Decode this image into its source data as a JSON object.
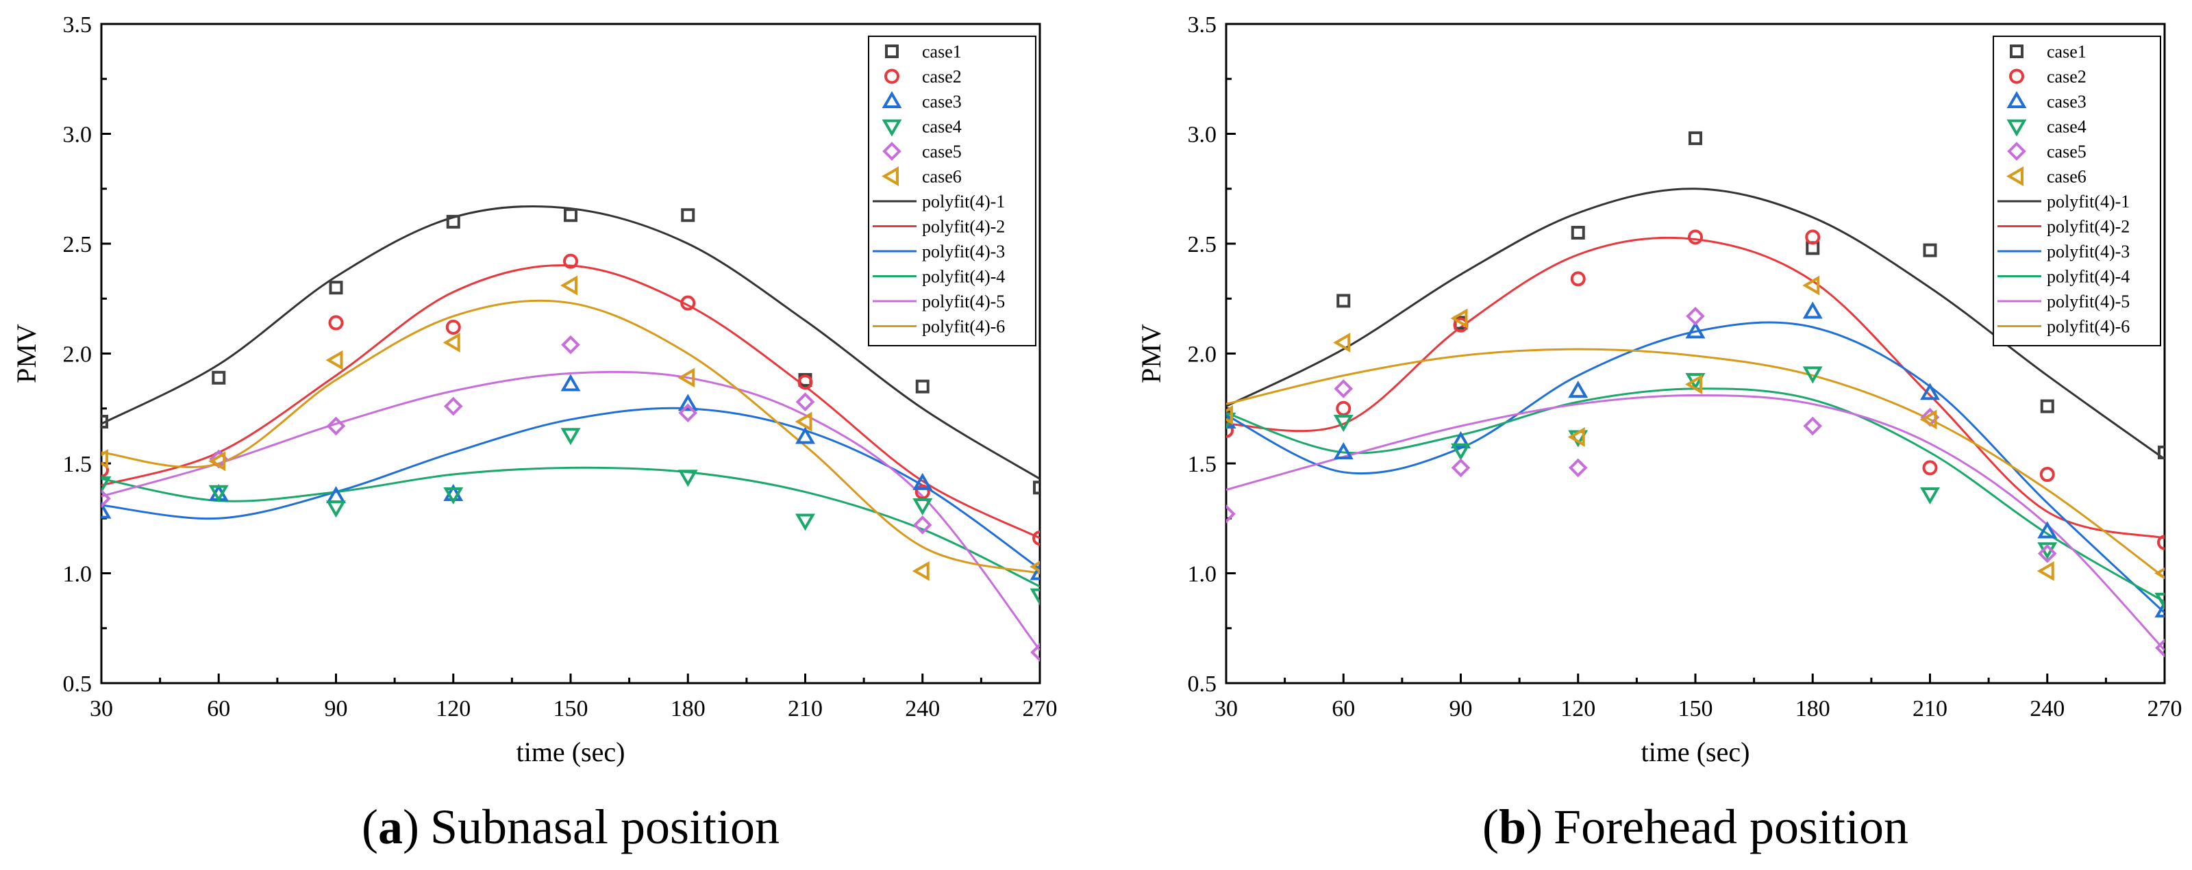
{
  "chart_data": [
    {
      "type": "scatter",
      "caption_letter": "a",
      "caption_open": "(",
      "caption_close": ")",
      "caption_text": "Subnasal position",
      "xlabel": "time (sec)",
      "ylabel": "PMV",
      "xlim": [
        30,
        270
      ],
      "ylim": [
        0.5,
        3.5
      ],
      "xticks": [
        "30",
        "60",
        "90",
        "120",
        "150",
        "180",
        "210",
        "240",
        "270"
      ],
      "yticks": [
        "0.5",
        "1.0",
        "1.5",
        "2.0",
        "2.5",
        "3.0",
        "3.5"
      ],
      "legend_position": "top-right",
      "x": [
        30,
        60,
        90,
        120,
        150,
        180,
        210,
        240,
        270
      ],
      "series": [
        {
          "name": "case1",
          "marker": "square",
          "color": "#404040",
          "values": [
            1.69,
            1.89,
            2.3,
            2.6,
            2.63,
            2.63,
            1.88,
            1.85,
            1.39
          ]
        },
        {
          "name": "case2",
          "marker": "circle",
          "color": "#e8383d",
          "values": [
            1.47,
            1.52,
            2.14,
            2.12,
            2.42,
            2.23,
            1.87,
            1.37,
            1.16
          ]
        },
        {
          "name": "case3",
          "marker": "triangle-up",
          "color": "#1f6fd6",
          "values": [
            1.28,
            1.36,
            1.35,
            1.36,
            1.86,
            1.77,
            1.62,
            1.41,
            1.0
          ]
        },
        {
          "name": "case4",
          "marker": "triangle-down",
          "color": "#1aa86b",
          "values": [
            1.41,
            1.37,
            1.3,
            1.36,
            1.63,
            1.44,
            1.24,
            1.31,
            0.9
          ]
        },
        {
          "name": "case5",
          "marker": "diamond",
          "color": "#c86edb",
          "values": [
            1.34,
            1.52,
            1.67,
            1.76,
            2.04,
            1.73,
            1.78,
            1.22,
            0.64
          ]
        },
        {
          "name": "case6",
          "marker": "triangle-left",
          "color": "#d79a1a",
          "values": [
            1.52,
            1.51,
            1.97,
            2.05,
            2.31,
            1.89,
            1.69,
            1.01,
            1.03
          ]
        }
      ],
      "fits": [
        {
          "name": "polyfit(4)-1",
          "color": "#333333",
          "values": [
            1.68,
            1.95,
            2.35,
            2.62,
            2.66,
            2.5,
            2.15,
            1.75,
            1.43
          ]
        },
        {
          "name": "polyfit(4)-2",
          "color": "#e8383d",
          "values": [
            1.4,
            1.55,
            1.9,
            2.28,
            2.4,
            2.22,
            1.85,
            1.42,
            1.16
          ]
        },
        {
          "name": "polyfit(4)-3",
          "color": "#1f6fd6",
          "values": [
            1.31,
            1.25,
            1.37,
            1.55,
            1.7,
            1.75,
            1.65,
            1.4,
            1.02
          ]
        },
        {
          "name": "polyfit(4)-4",
          "color": "#1aa86b",
          "values": [
            1.43,
            1.33,
            1.37,
            1.45,
            1.48,
            1.46,
            1.37,
            1.2,
            0.94
          ]
        },
        {
          "name": "polyfit(4)-5",
          "color": "#c86edb",
          "values": [
            1.35,
            1.5,
            1.68,
            1.83,
            1.91,
            1.89,
            1.72,
            1.35,
            0.65
          ]
        },
        {
          "name": "polyfit(4)-6",
          "color": "#d79a1a",
          "values": [
            1.55,
            1.5,
            1.88,
            2.17,
            2.23,
            2.0,
            1.58,
            1.12,
            1.0
          ]
        }
      ]
    },
    {
      "type": "scatter",
      "caption_letter": "b",
      "caption_open": "(",
      "caption_close": ")",
      "caption_text": "Forehead position",
      "xlabel": "time (sec)",
      "ylabel": "PMV",
      "xlim": [
        30,
        270
      ],
      "ylim": [
        0.5,
        3.5
      ],
      "xticks": [
        "30",
        "60",
        "90",
        "120",
        "150",
        "180",
        "210",
        "240",
        "270"
      ],
      "yticks": [
        "0.5",
        "1.0",
        "1.5",
        "2.0",
        "2.5",
        "3.0",
        "3.5"
      ],
      "legend_position": "top-right",
      "x": [
        30,
        60,
        90,
        120,
        150,
        180,
        210,
        240,
        270
      ],
      "series": [
        {
          "name": "case1",
          "marker": "square",
          "color": "#404040",
          "values": [
            1.71,
            2.24,
            2.14,
            2.55,
            2.98,
            2.48,
            2.47,
            1.76,
            1.55
          ]
        },
        {
          "name": "case2",
          "marker": "circle",
          "color": "#e8383d",
          "values": [
            1.65,
            1.75,
            2.13,
            2.34,
            2.53,
            2.53,
            1.48,
            1.45,
            1.14
          ]
        },
        {
          "name": "case3",
          "marker": "triangle-up",
          "color": "#1f6fd6",
          "values": [
            1.69,
            1.55,
            1.6,
            1.83,
            2.1,
            2.19,
            1.82,
            1.19,
            0.83
          ]
        },
        {
          "name": "case4",
          "marker": "triangle-down",
          "color": "#1aa86b",
          "values": [
            1.7,
            1.69,
            1.56,
            1.62,
            1.88,
            1.91,
            1.36,
            1.11,
            0.88
          ]
        },
        {
          "name": "case5",
          "marker": "diamond",
          "color": "#c86edb",
          "values": [
            1.27,
            1.84,
            1.48,
            1.48,
            2.17,
            1.67,
            1.71,
            1.09,
            0.66
          ]
        },
        {
          "name": "case6",
          "marker": "triangle-left",
          "color": "#d79a1a",
          "values": [
            1.72,
            2.05,
            2.16,
            1.62,
            1.86,
            2.31,
            1.7,
            1.01,
            1.0
          ]
        }
      ],
      "fits": [
        {
          "name": "polyfit(4)-1",
          "color": "#333333",
          "values": [
            1.76,
            2.02,
            2.36,
            2.64,
            2.75,
            2.62,
            2.3,
            1.9,
            1.52
          ]
        },
        {
          "name": "polyfit(4)-2",
          "color": "#e8383d",
          "values": [
            1.68,
            1.68,
            2.12,
            2.45,
            2.52,
            2.33,
            1.81,
            1.28,
            1.16
          ]
        },
        {
          "name": "polyfit(4)-3",
          "color": "#1f6fd6",
          "values": [
            1.72,
            1.46,
            1.57,
            1.9,
            2.1,
            2.12,
            1.85,
            1.32,
            0.82
          ]
        },
        {
          "name": "polyfit(4)-4",
          "color": "#1aa86b",
          "values": [
            1.73,
            1.55,
            1.63,
            1.78,
            1.84,
            1.79,
            1.55,
            1.18,
            0.87
          ]
        },
        {
          "name": "polyfit(4)-5",
          "color": "#c86edb",
          "values": [
            1.38,
            1.53,
            1.67,
            1.77,
            1.81,
            1.77,
            1.59,
            1.22,
            0.65
          ]
        },
        {
          "name": "polyfit(4)-6",
          "color": "#d79a1a",
          "values": [
            1.77,
            1.9,
            1.99,
            2.02,
            1.99,
            1.9,
            1.7,
            1.38,
            0.98
          ]
        }
      ]
    }
  ]
}
